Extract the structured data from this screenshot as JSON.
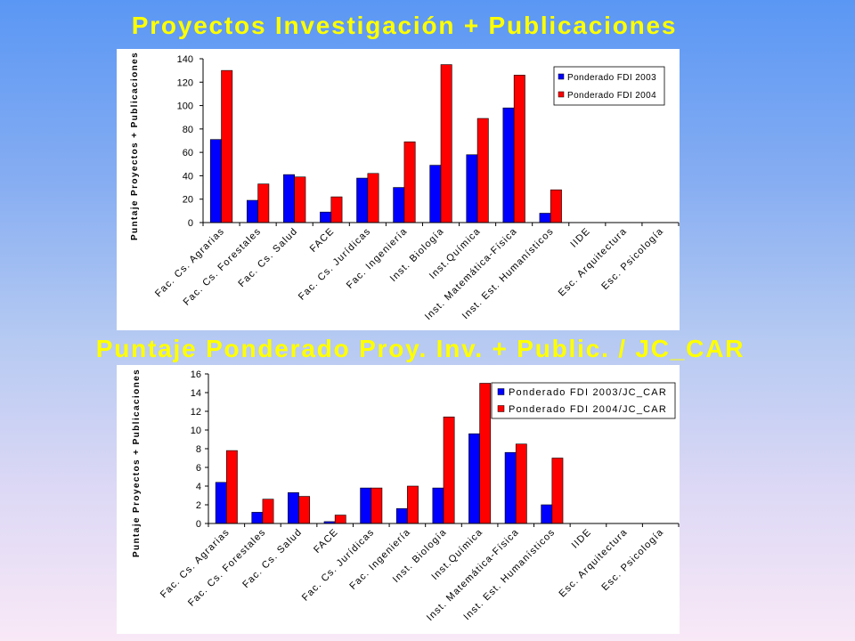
{
  "colors": {
    "title": "#ffff00"
  },
  "chart_data": [
    {
      "type": "bar",
      "title": "Proyectos Investigación + Publicaciones",
      "ylabel": "Puntaje Proyectos + Publicaciones",
      "ylim": [
        0,
        140
      ],
      "yticks": [
        0,
        20,
        40,
        60,
        80,
        100,
        120,
        140
      ],
      "grid": false,
      "legend": "top-right",
      "categories": [
        "Fac. Cs. Agrarias",
        "Fac. Cs. Forestales",
        "Fac. Cs. Salud",
        "FACE",
        "Fac. Cs. Jurídicas",
        "Fac. Ingeniería",
        "Inst. Biología",
        "Inst.Química",
        "Inst. Matemática-Física",
        "Inst. Est. Humanísticos",
        "IIDE",
        "Esc. Arquitectura",
        "Esc. Psicología"
      ],
      "series": [
        {
          "name": "Ponderado FDI 2003",
          "color": "#0000ff",
          "values": [
            71,
            19,
            41,
            9,
            38,
            30,
            49,
            58,
            98,
            8,
            0,
            0,
            0
          ]
        },
        {
          "name": "Ponderado FDI 2004",
          "color": "#ff0000",
          "values": [
            130,
            33,
            39,
            22,
            42,
            69,
            135,
            89,
            126,
            28,
            0,
            0,
            0
          ]
        }
      ]
    },
    {
      "type": "bar",
      "title": "Puntaje Ponderado Proy. Inv. + Public. / JC_CAR",
      "ylabel": "Puntaje Proyectos + Publicaciones",
      "ylim": [
        0,
        16
      ],
      "yticks": [
        0,
        2,
        4,
        6,
        8,
        10,
        12,
        14,
        16
      ],
      "grid": false,
      "legend": "top-right",
      "categories": [
        "Fac. Cs. Agrarias",
        "Fac. Cs. Forestales",
        "Fac. Cs. Salud",
        "FACE",
        "Fac. Cs. Jurídicas",
        "Fac. Ingeniería",
        "Inst. Biología",
        "Inst.Química",
        "Inst. Matemática-Física",
        "Inst. Est. Humanísticos",
        "IIDE",
        "Esc. Arquitectura",
        "Esc. Psicología"
      ],
      "series": [
        {
          "name": "Ponderado FDI 2003/JC_CAR",
          "color": "#0000ff",
          "values": [
            4.4,
            1.2,
            3.3,
            0.2,
            3.8,
            1.6,
            3.8,
            9.6,
            7.6,
            2.0,
            0,
            0,
            0
          ]
        },
        {
          "name": "Ponderado FDI 2004/JC_CAR",
          "color": "#ff0000",
          "values": [
            7.8,
            2.6,
            2.9,
            0.9,
            3.8,
            4.0,
            11.4,
            15.0,
            8.5,
            7.0,
            0,
            0,
            0
          ]
        }
      ]
    }
  ]
}
